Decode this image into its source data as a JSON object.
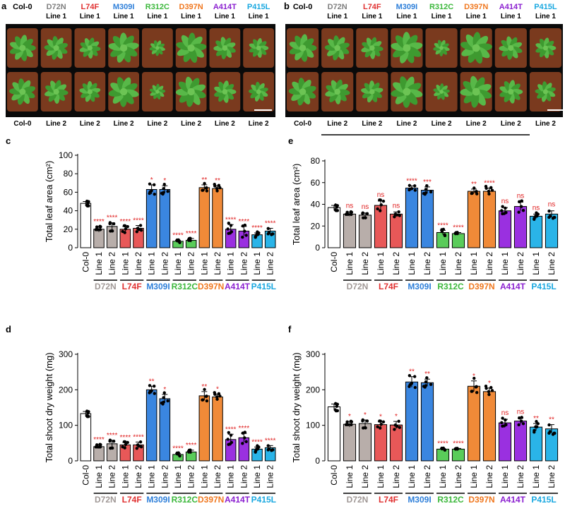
{
  "figure": {
    "panel_a": {
      "letter": "a",
      "top_labels": [
        {
          "name": "Col-0",
          "sub": "",
          "color": "#000000"
        },
        {
          "name": "D72N",
          "sub": "Line 1",
          "color": "#7f7f7f"
        },
        {
          "name": "L74F",
          "sub": "Line 1",
          "color": "#e03030"
        },
        {
          "name": "M309I",
          "sub": "Line 1",
          "color": "#2e7fd9"
        },
        {
          "name": "R312C",
          "sub": "Line 1",
          "color": "#3cb83c"
        },
        {
          "name": "D397N",
          "sub": "Line 1",
          "color": "#f07820"
        },
        {
          "name": "A414T",
          "sub": "Line 1",
          "color": "#8b20d0"
        },
        {
          "name": "P415L",
          "sub": "Line 1",
          "color": "#1aa8e0"
        }
      ],
      "bottom_labels": [
        "Col-0",
        "Line 2",
        "Line 2",
        "Line 2",
        "Line 2",
        "Line 2",
        "Line 2",
        "Line 2"
      ]
    },
    "panel_b": {
      "letter": "b",
      "top_labels": [
        {
          "name": "Col-0",
          "sub": "",
          "color": "#000000"
        },
        {
          "name": "D72N",
          "sub": "Line 1",
          "color": "#7f7f7f"
        },
        {
          "name": "L74F",
          "sub": "Line 1",
          "color": "#e03030"
        },
        {
          "name": "M309I",
          "sub": "Line 1",
          "color": "#2e7fd9"
        },
        {
          "name": "R312C",
          "sub": "Line 1",
          "color": "#3cb83c"
        },
        {
          "name": "D397N",
          "sub": "Line 1",
          "color": "#f07820"
        },
        {
          "name": "A414T",
          "sub": "Line 1",
          "color": "#8b20d0"
        },
        {
          "name": "P415L",
          "sub": "Line 1",
          "color": "#1aa8e0"
        }
      ],
      "bottom_labels": [
        "Col-0",
        "Line 2",
        "Line 2",
        "Line 2",
        "Line 2",
        "Line 2",
        "Line 2",
        "Line 2"
      ]
    }
  },
  "chart_data": [
    {
      "panel": "c",
      "type": "bar",
      "ylabel": "Total leaf area (cm²)",
      "ylim": [
        0,
        100
      ],
      "yticks": [
        0,
        20,
        40,
        60,
        80,
        100
      ],
      "categories": [
        "Col-0",
        "Line 1",
        "Line 2",
        "Line 1",
        "Line 2",
        "Line 1",
        "Line 2",
        "Line 1",
        "Line 2",
        "Line 1",
        "Line 2",
        "Line 1",
        "Line 2",
        "Line 1",
        "Line 2"
      ],
      "values": [
        48,
        20,
        23,
        20,
        21,
        63,
        63,
        7,
        8,
        65,
        64,
        20,
        18,
        14,
        18
      ],
      "errors": [
        2,
        3,
        4,
        3,
        3,
        5,
        4,
        1,
        2,
        3,
        3,
        5,
        5,
        2,
        3
      ],
      "significance": [
        "",
        "****",
        "****",
        "****",
        "****",
        "*",
        "*",
        "****",
        "****",
        "**",
        "**",
        "****",
        "****",
        "****",
        "****"
      ]
    },
    {
      "panel": "e",
      "type": "bar",
      "ylabel": "Total leaf area (cm²)",
      "ylim": [
        0,
        80
      ],
      "yticks": [
        0,
        20,
        40,
        60,
        80
      ],
      "categories": [
        "Col-0",
        "Line 1",
        "Line 2",
        "Line 1",
        "Line 2",
        "Line 1",
        "Line 2",
        "Line 1",
        "Line 2",
        "Line 1",
        "Line 2",
        "Line 1",
        "Line 2",
        "Line 1",
        "Line 2"
      ],
      "values": [
        37,
        31,
        30,
        39,
        31,
        55,
        53,
        14,
        13,
        52,
        52,
        34,
        38,
        29,
        31
      ],
      "errors": [
        2,
        2,
        2,
        4,
        2,
        2,
        3,
        2,
        1,
        2,
        3,
        3,
        4,
        2,
        3
      ],
      "significance": [
        "",
        "ns",
        "ns",
        "ns",
        "ns",
        "****",
        "***",
        "****",
        "****",
        "**",
        "****",
        "ns",
        "ns",
        "ns",
        "ns"
      ]
    },
    {
      "panel": "d",
      "type": "bar",
      "ylabel": "Total shoot dry weight (mg)",
      "ylim": [
        0,
        300
      ],
      "yticks": [
        0,
        100,
        200,
        300
      ],
      "categories": [
        "Col-0",
        "Line 1",
        "Line 2",
        "Line 1",
        "Line 2",
        "Line 1",
        "Line 2",
        "Line 1",
        "Line 2",
        "Line 1",
        "Line 2",
        "Line 1",
        "Line 2",
        "Line 1",
        "Line 2"
      ],
      "values": [
        133,
        40,
        48,
        45,
        45,
        200,
        175,
        18,
        25,
        183,
        180,
        60,
        65,
        33,
        37
      ],
      "errors": [
        6,
        6,
        10,
        7,
        8,
        10,
        12,
        3,
        5,
        12,
        8,
        15,
        12,
        6,
        6
      ],
      "significance": [
        "",
        "****",
        "****",
        "****",
        "****",
        "**",
        "*",
        "****",
        "****",
        "**",
        "*",
        "****",
        "****",
        "****",
        "****"
      ]
    },
    {
      "panel": "f",
      "type": "bar",
      "ylabel": "Total shoot dry weight (mg)",
      "ylim": [
        0,
        300
      ],
      "yticks": [
        0,
        100,
        200,
        300
      ],
      "categories": [
        "Col-0",
        "Line 1",
        "Line 2",
        "Line 1",
        "Line 2",
        "Line 1",
        "Line 2",
        "Line 1",
        "Line 2",
        "Line 1",
        "Line 2",
        "Line 1",
        "Line 2",
        "Line 1",
        "Line 2"
      ],
      "values": [
        152,
        103,
        105,
        102,
        101,
        222,
        220,
        33,
        33,
        210,
        195,
        107,
        112,
        95,
        90
      ],
      "errors": [
        8,
        8,
        10,
        8,
        10,
        15,
        10,
        2,
        2,
        15,
        10,
        10,
        8,
        10,
        12
      ],
      "significance": [
        "",
        "*",
        "*",
        "*",
        "*",
        "**",
        "**",
        "****",
        "****",
        "*",
        "*",
        "ns",
        "ns",
        "**",
        "**"
      ]
    }
  ],
  "groups": [
    {
      "name": "D72N",
      "color": "#a09896"
    },
    {
      "name": "L74F",
      "color": "#e03030"
    },
    {
      "name": "M309I",
      "color": "#2e7fd9"
    },
    {
      "name": "R312C",
      "color": "#3cb83c"
    },
    {
      "name": "D397N",
      "color": "#f07820"
    },
    {
      "name": "A414T",
      "color": "#8b20d0"
    },
    {
      "name": "P415L",
      "color": "#1aa8e0"
    }
  ],
  "colors": {
    "col0": "#ffffff",
    "bars": [
      "#ffffff",
      "#b8aeaa",
      "#b8aeaa",
      "#e85858",
      "#e85858",
      "#3a86e0",
      "#3a86e0",
      "#5acc5a",
      "#5acc5a",
      "#f08a38",
      "#f08a38",
      "#9a30e0",
      "#9a30e0",
      "#2ab4e8",
      "#2ab4e8"
    ],
    "significance": "#e02020",
    "soil": "#7a3a1e",
    "leaf": "#4aa83a"
  }
}
